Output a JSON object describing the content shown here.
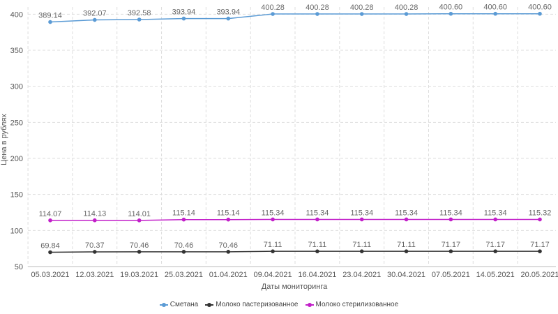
{
  "chart_data": {
    "type": "line",
    "xlabel": "Даты мониторинга",
    "ylabel": "Цена в рублях",
    "ylim": [
      50,
      410
    ],
    "yticks": [
      50,
      100,
      150,
      200,
      250,
      300,
      350,
      400
    ],
    "grid": true,
    "legend_position": "bottom",
    "categories": [
      "05.03.2021",
      "12.03.2021",
      "19.03.2021",
      "25.03.2021",
      "01.04.2021",
      "09.04.2021",
      "16.04.2021",
      "23.04.2021",
      "30.04.2021",
      "07.05.2021",
      "14.05.2021",
      "20.05.2021"
    ],
    "series": [
      {
        "name": "Сметана",
        "color": "#5b9bd5",
        "values": [
          389.14,
          392.07,
          392.58,
          393.94,
          393.94,
          400.28,
          400.28,
          400.28,
          400.28,
          400.6,
          400.6,
          400.6
        ],
        "labels": [
          "389.14",
          "392.07",
          "392.58",
          "393.94",
          "393.94",
          "400.28",
          "400.28",
          "400.28",
          "400.28",
          "400.60",
          "400.60",
          "400.60"
        ]
      },
      {
        "name": "Молоко пастеризованное",
        "color": "#333333",
        "values": [
          69.84,
          70.37,
          70.46,
          70.46,
          70.46,
          71.11,
          71.11,
          71.11,
          71.11,
          71.17,
          71.17,
          71.17
        ],
        "labels": [
          "69.84",
          "70.37",
          "70.46",
          "70.46",
          "70.46",
          "71.11",
          "71.11",
          "71.11",
          "71.11",
          "71.17",
          "71.17",
          "71.17"
        ]
      },
      {
        "name": "Молоко стерилизованное",
        "color": "#c21fc9",
        "values": [
          114.07,
          114.13,
          114.01,
          115.14,
          115.14,
          115.34,
          115.34,
          115.34,
          115.34,
          115.34,
          115.34,
          115.32
        ],
        "labels": [
          "114.07",
          "114.13",
          "114.01",
          "115.14",
          "115.14",
          "115.34",
          "115.34",
          "115.34",
          "115.34",
          "115.34",
          "115.34",
          "115.32"
        ]
      }
    ]
  }
}
